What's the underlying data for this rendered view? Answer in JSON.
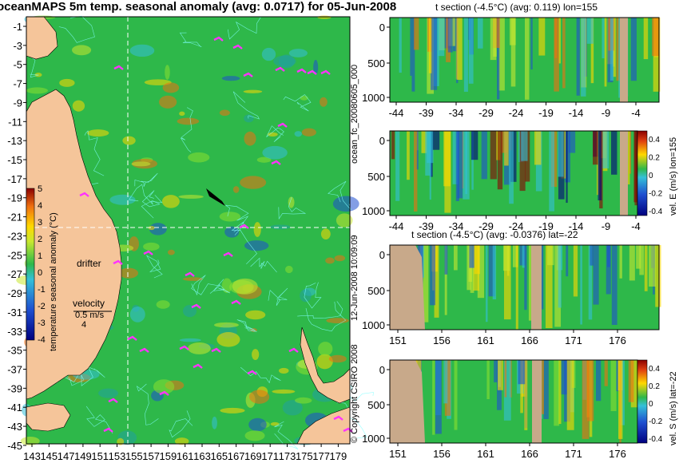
{
  "title": "oceanMAPS 5m temp. seasonal anomaly (avg: 0.0717) for 05-Jun-2008",
  "sections": {
    "top": "t section (-4.5°C) (avg: 0.119) lon=155",
    "third": "t section (-4.5°C) (avg: -0.0376) lat=-22"
  },
  "side_labels": {
    "run_id": "ocean_fc_20080605_000",
    "run_time": "12-Jun-2008 10:09:09",
    "copyright": "© Copyright CSIRO 2008",
    "vel_e": "vel. E (m/s) lon=155",
    "vel_s": "vel. S (m/s) lat=-22"
  },
  "map_labels": {
    "drifter": "drifter",
    "velocity": "velocity",
    "vel_value": "0.5 m/s",
    "vel_num": "4"
  },
  "colors": {
    "land": "#f5c59a",
    "section_land": "#c8a98a",
    "ocean_base": "#2eb84a",
    "contour": "#80ffff",
    "drifter": "#ff33ff",
    "crosshair": "#ffffff"
  },
  "chart_data": [
    {
      "type": "heatmap",
      "name": "map",
      "colorbar": {
        "label": "temperature seasonal anomaly (°C)",
        "ticks": [
          5,
          4,
          3,
          2,
          1,
          0,
          -1,
          -2,
          -3,
          -4
        ],
        "range": [
          -5,
          5
        ]
      },
      "x_ticks": [
        "143",
        "145",
        "147",
        "149",
        "151",
        "153",
        "155",
        "157",
        "159",
        "161",
        "163",
        "165",
        "167",
        "169",
        "171",
        "173",
        "175",
        "177",
        "179"
      ],
      "y_ticks": [
        "-1",
        "-3",
        "-5",
        "-7",
        "-9",
        "-11",
        "-13",
        "-15",
        "-17",
        "-19",
        "-21",
        "-23",
        "-25",
        "-27",
        "-29",
        "-31",
        "-33",
        "-35",
        "-37",
        "-39",
        "-41",
        "-43",
        "-45"
      ],
      "xlim": [
        142,
        180
      ],
      "ylim": [
        -45,
        0
      ],
      "crosshair": {
        "lon": 155,
        "lat": -22
      }
    },
    {
      "type": "heatmap",
      "name": "t-section-lon155",
      "x_ticks": [
        "-44",
        "-39",
        "-34",
        "-29",
        "-24",
        "-19",
        "-14",
        "-9",
        "-4"
      ],
      "y_ticks": [
        "0",
        "500",
        "1000"
      ]
    },
    {
      "type": "heatmap",
      "name": "velE-section-lon155",
      "x_ticks": [
        "-44",
        "-39",
        "-34",
        "-29",
        "-24",
        "-19",
        "-14",
        "-9",
        "-4"
      ],
      "y_ticks": [
        "0",
        "500",
        "1000"
      ],
      "colorbar": {
        "ticks": [
          "0.4",
          "0.2",
          "0",
          "-0.2",
          "-0.4"
        ]
      }
    },
    {
      "type": "heatmap",
      "name": "t-section-lat22",
      "x_ticks": [
        "151",
        "156",
        "161",
        "166",
        "171",
        "176"
      ],
      "y_ticks": [
        "0",
        "500",
        "1000"
      ]
    },
    {
      "type": "heatmap",
      "name": "velS-section-lat22",
      "x_ticks": [
        "151",
        "156",
        "161",
        "166",
        "171",
        "176"
      ],
      "y_ticks": [
        "0",
        "500",
        "1000"
      ],
      "colorbar": {
        "ticks": [
          "0.4",
          "0.2",
          "0",
          "-0.2",
          "-0.4"
        ]
      }
    }
  ]
}
